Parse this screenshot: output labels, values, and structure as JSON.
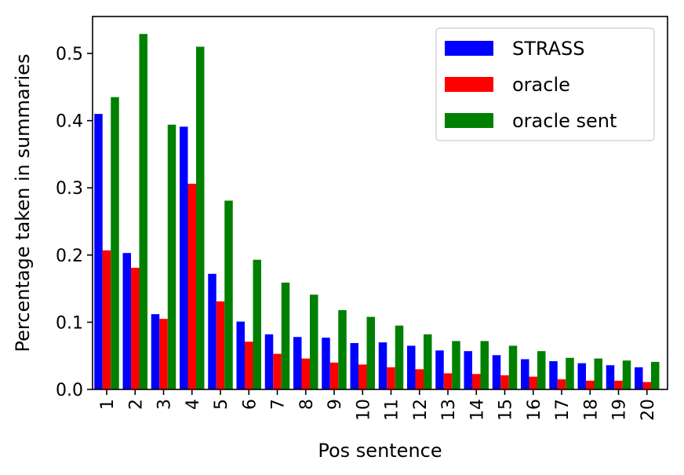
{
  "chart_data": {
    "type": "bar",
    "xlabel": "Pos sentence",
    "ylabel": "Percentage taken in summaries",
    "ylim": [
      0,
      0.555
    ],
    "yticks": [
      "0.0",
      "0.1",
      "0.2",
      "0.3",
      "0.4",
      "0.5"
    ],
    "categories": [
      "1",
      "2",
      "3",
      "4",
      "5",
      "6",
      "7",
      "8",
      "9",
      "10",
      "11",
      "12",
      "13",
      "14",
      "15",
      "16",
      "17",
      "18",
      "19",
      "20"
    ],
    "legend_position": "top-right",
    "grid": false,
    "series": [
      {
        "name": "STRASS",
        "color": "#0000ff",
        "values": [
          0.41,
          0.203,
          0.112,
          0.391,
          0.172,
          0.101,
          0.082,
          0.078,
          0.077,
          0.069,
          0.07,
          0.065,
          0.058,
          0.057,
          0.051,
          0.045,
          0.042,
          0.039,
          0.036,
          0.033
        ]
      },
      {
        "name": "oracle",
        "color": "#ff0000",
        "values": [
          0.207,
          0.181,
          0.105,
          0.306,
          0.131,
          0.071,
          0.053,
          0.046,
          0.04,
          0.037,
          0.033,
          0.03,
          0.024,
          0.023,
          0.021,
          0.019,
          0.015,
          0.013,
          0.013,
          0.011
        ]
      },
      {
        "name": "oracle sent",
        "color": "#008000",
        "values": [
          0.435,
          0.529,
          0.394,
          0.51,
          0.281,
          0.193,
          0.159,
          0.141,
          0.118,
          0.108,
          0.095,
          0.082,
          0.072,
          0.072,
          0.065,
          0.057,
          0.047,
          0.046,
          0.043,
          0.041
        ]
      }
    ]
  }
}
